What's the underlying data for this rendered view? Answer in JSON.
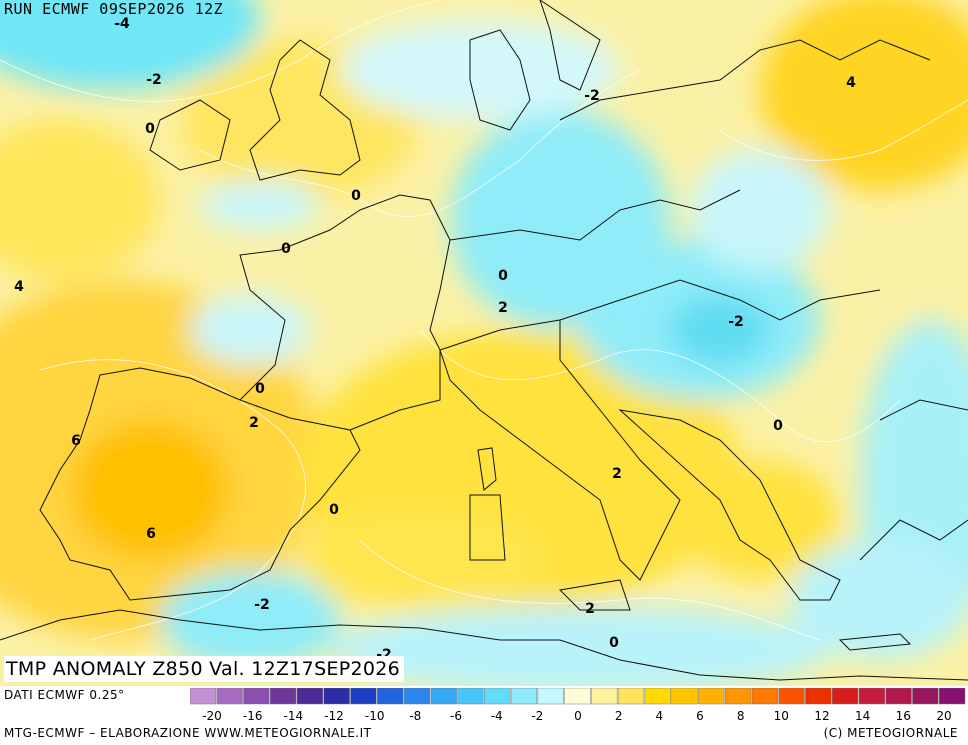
{
  "header": {
    "run_label": "RUN ECMWF 09SEP2026 12Z"
  },
  "map": {
    "title": "TMP ANOMALY Z850 Val. 12Z17SEP2026",
    "contour_labels": [
      "-4",
      "-2",
      "0",
      "-2",
      "0",
      "0",
      "0",
      "2",
      "4",
      "0",
      "2",
      "6",
      "6",
      "0",
      "-2",
      "-2",
      "-2",
      "0",
      "2",
      "4",
      "-2",
      "0",
      "2",
      "0",
      "0"
    ]
  },
  "legend": {
    "ticks": [
      "-20",
      "-16",
      "-14",
      "-12",
      "-10",
      "-8",
      "-6",
      "-4",
      "-2",
      "0",
      "2",
      "4",
      "6",
      "8",
      "10",
      "12",
      "14",
      "16",
      "20"
    ],
    "colors": [
      "#c58fd6",
      "#a66cc4",
      "#8a4fb0",
      "#6f379c",
      "#4a2a96",
      "#2b2ba3",
      "#1c3ec2",
      "#1f63de",
      "#2a86ee",
      "#35a9f5",
      "#47c6fa",
      "#62dcfb",
      "#90ecfd",
      "#c6f6fe",
      "#fffdd6",
      "#fff0a0",
      "#ffe25c",
      "#ffd800",
      "#ffc600",
      "#ffb000",
      "#ff9600",
      "#ff7800",
      "#f95400",
      "#ee3000",
      "#d91c1c",
      "#c51c3a",
      "#b0194e",
      "#9a1560",
      "#861070"
    ]
  },
  "footer": {
    "source": "DATI ECMWF 0.25°",
    "credits": "MTG-ECMWF – ELABORAZIONE WWW.METEOGIORNALE.IT",
    "copyright": "(C) METEOGIORNALE"
  }
}
